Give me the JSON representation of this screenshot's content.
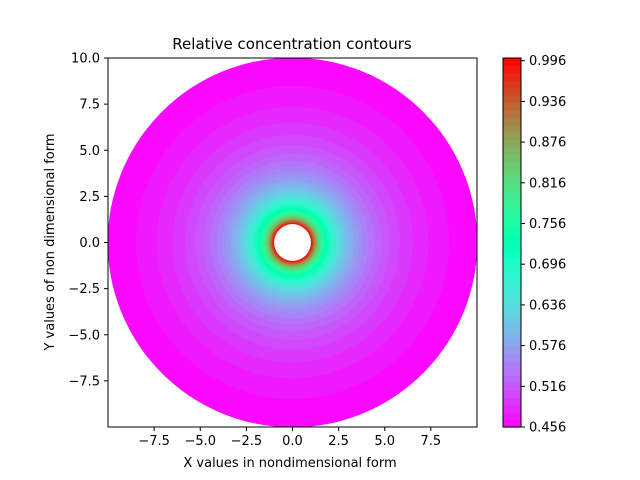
{
  "chart_data": {
    "type": "heatmap",
    "subtype": "filled-contour",
    "title": "Relative concentration contours",
    "xlabel": "X values in nondimensional form",
    "ylabel": "Y values of non dimensional form",
    "xlim": [
      -10,
      10
    ],
    "ylim": [
      -10,
      10
    ],
    "xticks": [
      -7.5,
      -5.0,
      -2.5,
      0.0,
      2.5,
      5.0,
      7.5
    ],
    "xtick_labels": [
      "−7.5",
      "−5.0",
      "−2.5",
      "0.0",
      "2.5",
      "5.0",
      "7.5"
    ],
    "yticks": [
      10.0,
      7.5,
      5.0,
      2.5,
      0.0,
      -2.5,
      -5.0,
      -7.5
    ],
    "ytick_labels": [
      "10.0",
      "7.5",
      "5.0",
      "2.5",
      "0.0",
      "−2.5",
      "−5.0",
      "−7.5"
    ],
    "domain": {
      "inner_radius": 1.0,
      "outer_radius": 10.0,
      "center": [
        0,
        0
      ]
    },
    "colormap": "rainbow",
    "colorbar": {
      "vmin": 0.456,
      "vmax": 1.0,
      "levels": 50,
      "ticks": [
        0.456,
        0.516,
        0.576,
        0.636,
        0.696,
        0.756,
        0.816,
        0.876,
        0.936,
        0.996
      ],
      "tick_labels": [
        "0.456",
        "0.516",
        "0.576",
        "0.636",
        "0.696",
        "0.756",
        "0.816",
        "0.876",
        "0.936",
        "0.996"
      ]
    },
    "field": "concentration = 0.456 + 0.544 * ((1/r - 1/10) / (1 - 1/10))"
  }
}
